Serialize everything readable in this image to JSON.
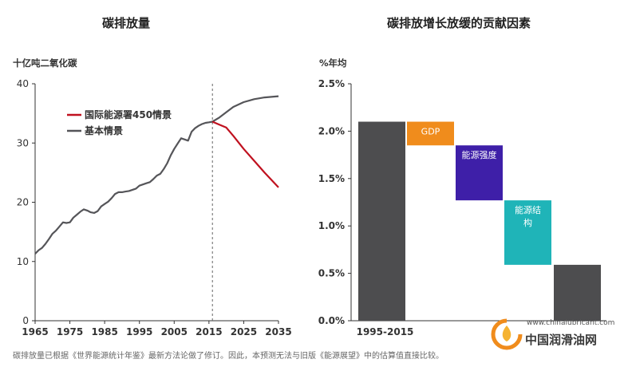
{
  "left_chart": {
    "title": "碳排放量",
    "unit": "十亿吨二氧化碳"
  },
  "right_chart": {
    "title": "碳排放增长放缓的贡献因素",
    "unit": "%年均"
  },
  "footnote": "碳排放量已根据《世界能源统计年鉴》最新方法论做了修订。因此，本预测无法与旧版《能源展望》中的估算值直接比较。",
  "watermark": {
    "url": "www.chinalubricant.com",
    "name": "中国润滑油网"
  },
  "colors": {
    "ets": "#c0111f",
    "base": "#555559",
    "bar_dark": "#4d4d4f",
    "gdp": "#f08c1c",
    "energy_intensity": "#3e1fa8",
    "energy_mix": "#1fb4b8"
  },
  "chart_data": [
    {
      "type": "line",
      "title": "碳排放量",
      "ylabel": "十亿吨二氧化碳",
      "xlim": [
        1965,
        2035
      ],
      "ylim": [
        0,
        40
      ],
      "xticks": [
        "1965",
        "1975",
        "1985",
        "1995",
        "2005",
        "2015",
        "2025",
        "2035"
      ],
      "yticks": [
        "0",
        "10",
        "20",
        "30",
        "40"
      ],
      "legend_position": "top-left",
      "reference_line_x": 2016,
      "series": [
        {
          "name": "基本情景",
          "color": "#555559",
          "points": [
            [
              1965,
              11.3
            ],
            [
              1966,
              11.9
            ],
            [
              1967,
              12.3
            ],
            [
              1968,
              13.0
            ],
            [
              1969,
              13.8
            ],
            [
              1970,
              14.7
            ],
            [
              1971,
              15.2
            ],
            [
              1972,
              15.9
            ],
            [
              1973,
              16.6
            ],
            [
              1974,
              16.5
            ],
            [
              1975,
              16.6
            ],
            [
              1976,
              17.4
            ],
            [
              1977,
              17.9
            ],
            [
              1978,
              18.4
            ],
            [
              1979,
              18.8
            ],
            [
              1980,
              18.6
            ],
            [
              1981,
              18.3
            ],
            [
              1982,
              18.2
            ],
            [
              1983,
              18.5
            ],
            [
              1984,
              19.3
            ],
            [
              1985,
              19.7
            ],
            [
              1986,
              20.1
            ],
            [
              1987,
              20.7
            ],
            [
              1988,
              21.4
            ],
            [
              1989,
              21.7
            ],
            [
              1990,
              21.7
            ],
            [
              1991,
              21.8
            ],
            [
              1992,
              21.9
            ],
            [
              1993,
              22.1
            ],
            [
              1994,
              22.3
            ],
            [
              1995,
              22.8
            ],
            [
              1996,
              23.0
            ],
            [
              1997,
              23.2
            ],
            [
              1998,
              23.4
            ],
            [
              1999,
              23.9
            ],
            [
              2000,
              24.5
            ],
            [
              2001,
              24.8
            ],
            [
              2002,
              25.6
            ],
            [
              2003,
              26.6
            ],
            [
              2004,
              27.9
            ],
            [
              2005,
              29.0
            ],
            [
              2006,
              29.9
            ],
            [
              2007,
              30.8
            ],
            [
              2008,
              30.6
            ],
            [
              2009,
              30.4
            ],
            [
              2010,
              31.9
            ],
            [
              2011,
              32.5
            ],
            [
              2012,
              32.9
            ],
            [
              2013,
              33.2
            ],
            [
              2014,
              33.4
            ],
            [
              2015,
              33.5
            ],
            [
              2016,
              33.6
            ],
            [
              2018,
              34.3
            ],
            [
              2020,
              35.2
            ],
            [
              2022,
              36.1
            ],
            [
              2025,
              36.9
            ],
            [
              2028,
              37.4
            ],
            [
              2031,
              37.7
            ],
            [
              2035,
              37.9
            ]
          ]
        },
        {
          "name": "国际能源署450情景",
          "color": "#c0111f",
          "points": [
            [
              2016,
              33.6
            ],
            [
              2018,
              33.1
            ],
            [
              2020,
              32.6
            ],
            [
              2022,
              31.2
            ],
            [
              2025,
              29.0
            ],
            [
              2028,
              27.0
            ],
            [
              2031,
              25.0
            ],
            [
              2035,
              22.5
            ]
          ]
        }
      ]
    },
    {
      "type": "bar",
      "title": "碳排放增长放缓的贡献因素",
      "ylabel": "%年均",
      "ylim": [
        0,
        2.5
      ],
      "yticks": [
        "0.0%",
        "0.5%",
        "1.0%",
        "1.5%",
        "2.0%",
        "2.5%"
      ],
      "categories": [
        "1995-2015",
        "GDP",
        "能源强度",
        "能源结构",
        ""
      ],
      "bars": [
        {
          "label": "1995-2015",
          "bottom": 0.0,
          "top": 2.1,
          "color": "#4d4d4f"
        },
        {
          "label": "GDP",
          "bottom": 1.85,
          "top": 2.1,
          "color": "#f08c1c"
        },
        {
          "label": "能源强度",
          "bottom": 1.27,
          "top": 1.85,
          "color": "#3e1fa8"
        },
        {
          "label": "能源结构",
          "bottom": 0.59,
          "top": 1.27,
          "color": "#1fb4b8"
        },
        {
          "label": "",
          "bottom": 0.0,
          "top": 0.59,
          "color": "#4d4d4f"
        }
      ]
    }
  ]
}
